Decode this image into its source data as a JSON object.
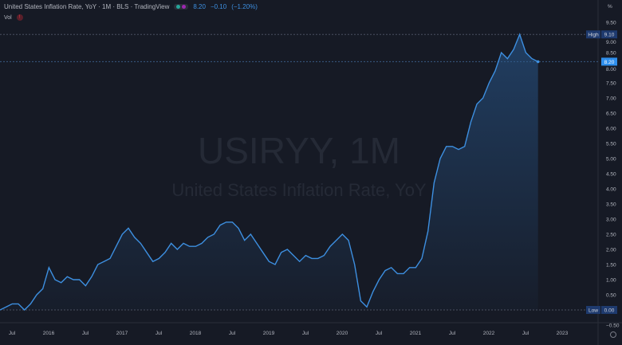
{
  "header": {
    "title": "United States Inflation Rate, YoY · 1M · BLS · TradingView",
    "last": "8.20",
    "change": "−0.10",
    "change_pct": "(−1.20%)",
    "vol_label": "Vol"
  },
  "watermark": {
    "symbol": "USIRYY, 1M",
    "name": "United States Inflation Rate, YoY"
  },
  "colors": {
    "background": "#161a25",
    "line": "#3d8fe0",
    "badge": "#1e3a6e",
    "last_badge": "#2f8fec"
  },
  "chart_data": {
    "type": "area",
    "unit_label": "%",
    "start": "2015-05",
    "values": [
      0.0,
      0.1,
      0.2,
      0.2,
      0.0,
      0.2,
      0.5,
      0.7,
      1.4,
      1.0,
      0.9,
      1.1,
      1.0,
      1.0,
      0.8,
      1.1,
      1.5,
      1.6,
      1.7,
      2.1,
      2.5,
      2.7,
      2.4,
      2.2,
      1.9,
      1.6,
      1.7,
      1.9,
      2.2,
      2.0,
      2.2,
      2.1,
      2.1,
      2.2,
      2.4,
      2.5,
      2.8,
      2.9,
      2.9,
      2.7,
      2.3,
      2.5,
      2.2,
      1.9,
      1.6,
      1.5,
      1.9,
      2.0,
      1.8,
      1.6,
      1.8,
      1.7,
      1.7,
      1.8,
      2.1,
      2.3,
      2.5,
      2.3,
      1.5,
      0.3,
      0.1,
      0.6,
      1.0,
      1.3,
      1.4,
      1.2,
      1.2,
      1.4,
      1.4,
      1.7,
      2.6,
      4.2,
      5.0,
      5.4,
      5.4,
      5.3,
      5.4,
      6.2,
      6.8,
      7.0,
      7.5,
      7.9,
      8.5,
      8.3,
      8.6,
      9.1,
      8.5,
      8.3,
      8.2
    ],
    "ylim": [
      -0.75,
      9.75
    ],
    "y_ticks": [
      "9.50",
      "9.00",
      "8.50",
      "8.00",
      "7.50",
      "7.00",
      "6.50",
      "6.00",
      "5.50",
      "5.00",
      "4.50",
      "4.00",
      "3.50",
      "3.00",
      "2.50",
      "2.00",
      "1.50",
      "1.00",
      "0.50",
      "0.00",
      "-0.50"
    ],
    "x_ticks": [
      "Jul",
      "2016",
      "Jul",
      "2017",
      "Jul",
      "2018",
      "Jul",
      "2019",
      "Jul",
      "2020",
      "Jul",
      "2021",
      "Jul",
      "2022",
      "Jul",
      "2023"
    ],
    "high": {
      "label": "High",
      "value": "9.10"
    },
    "low": {
      "label": "Low",
      "value": "0.00"
    },
    "last": {
      "value": "8.20"
    }
  }
}
